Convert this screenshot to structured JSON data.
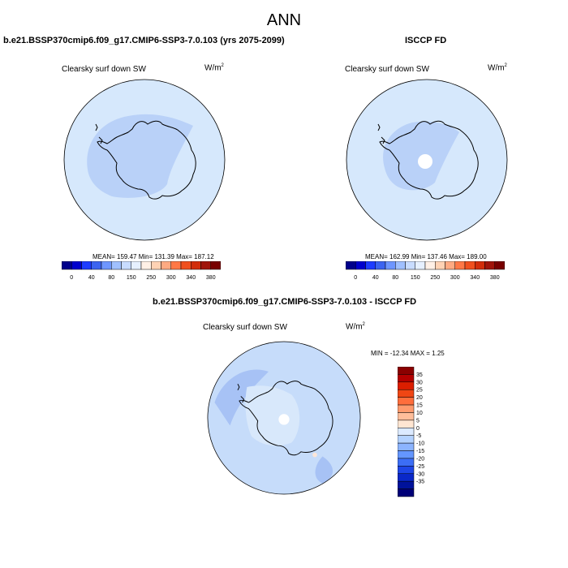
{
  "title": "ANN",
  "panels": [
    {
      "title": "b.e21.BSSP370cmip6.f09_g17.CMIP6-SSP3-7.0.103 (yrs 2075-2099)",
      "variable": "Clearsky surf down SW",
      "units_base": "W/m",
      "units_sup": "2",
      "stats": {
        "mean": "159.47",
        "min": "131.39",
        "max": "187.12"
      },
      "stats_text": "MEAN= 159.47  Min= 131.39  Max= 187.12"
    },
    {
      "title": "ISCCP FD",
      "variable": "Clearsky surf down SW",
      "units_base": "W/m",
      "units_sup": "2",
      "stats": {
        "mean": "162.99",
        "min": "137.46",
        "max": "189.00"
      },
      "stats_text": "MEAN= 162.99  Min= 137.46  Max= 189.00"
    }
  ],
  "diff_panel": {
    "title": "b.e21.BSSP370cmip6.f09_g17.CMIP6-SSP3-7.0.103 - ISCCP FD",
    "variable": "Clearsky surf down SW",
    "units_base": "W/m",
    "units_sup": "2",
    "stats": {
      "min": "-12.34",
      "max": "1.25"
    },
    "stats_text": "MIN = -12.34 MAX =   1.25"
  },
  "horizontal_colorbar": {
    "labels": [
      "0",
      "40",
      "80",
      "150",
      "250",
      "300",
      "340",
      "380"
    ],
    "colors": [
      "#00008b",
      "#0000cd",
      "#1e3cff",
      "#3c64f0",
      "#6e96ff",
      "#a0c0ff",
      "#c8dcff",
      "#e6f0ff",
      "#fff0e6",
      "#ffd2b4",
      "#ffaa82",
      "#ff7846",
      "#f0501e",
      "#d22d0a",
      "#a0140a",
      "#780000"
    ]
  },
  "vertical_colorbar": {
    "labels": [
      "35",
      "30",
      "25",
      "20",
      "15",
      "10",
      "5",
      "0",
      "-5",
      "-10",
      "-15",
      "-20",
      "-25",
      "-30",
      "-35"
    ],
    "colors": [
      "#8b0000",
      "#b40000",
      "#dc1e00",
      "#f04614",
      "#ff6e3c",
      "#ff9b6e",
      "#ffbe9b",
      "#ffe6d2",
      "#dceaff",
      "#b4d2ff",
      "#8cb4ff",
      "#6496ff",
      "#3c6ef5",
      "#1e46e6",
      "#0a28c8",
      "#00129b",
      "#000078"
    ]
  }
}
